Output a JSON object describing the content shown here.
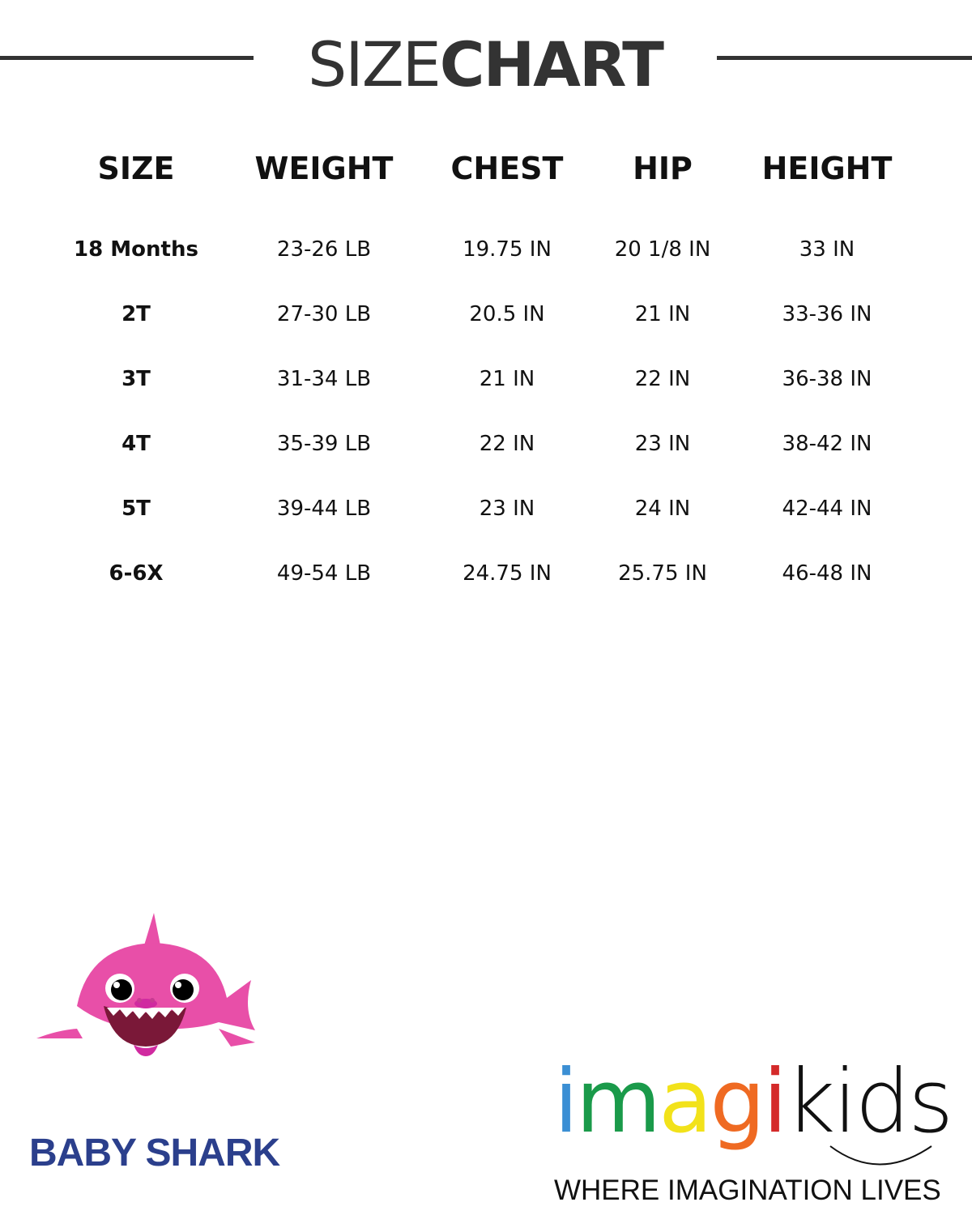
{
  "title": {
    "light": "SIZE",
    "bold": "CHART"
  },
  "table": {
    "headers": [
      "SIZE",
      "WEIGHT",
      "CHEST",
      "HIP",
      "HEIGHT"
    ],
    "rows": [
      [
        "18 Months",
        "23-26 LB",
        "19.75 IN",
        "20 1/8 IN",
        "33 IN"
      ],
      [
        "2T",
        "27-30 LB",
        "20.5 IN",
        "21 IN",
        "33-36 IN"
      ],
      [
        "3T",
        "31-34 LB",
        "21 IN",
        "22 IN",
        "36-38 IN"
      ],
      [
        "4T",
        "35-39 LB",
        "22 IN",
        "23 IN",
        "38-42 IN"
      ],
      [
        "5T",
        "39-44 LB",
        "23 IN",
        "24 IN",
        "42-44 IN"
      ],
      [
        "6-6X",
        "49-54 LB",
        "24.75 IN",
        "25.75 IN",
        "46-48 IN"
      ]
    ]
  },
  "brand_left": {
    "name": "BABY SHARK",
    "color": "#2b3f8c",
    "mascot_color": "#e84fa8"
  },
  "brand_right": {
    "letters": [
      {
        "ch": "i",
        "color": "#3b8fd4"
      },
      {
        "ch": "m",
        "color": "#1a9a4a"
      },
      {
        "ch": "a",
        "color": "#f2e21a"
      },
      {
        "ch": "g",
        "color": "#ef6a22"
      },
      {
        "ch": "i",
        "color": "#d42a2a"
      }
    ],
    "suffix": "kids",
    "tagline": "WHERE IMAGINATION LIVES"
  }
}
